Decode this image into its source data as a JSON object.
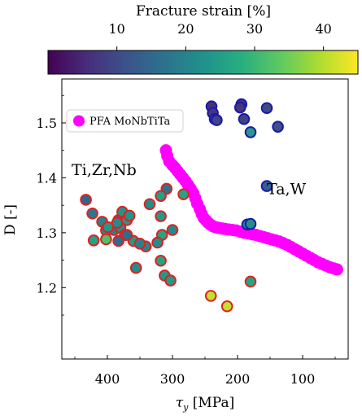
{
  "colorbar": {
    "label": "Fracture strain [%]",
    "vmin": 0,
    "vmax": 45,
    "ticks": [
      10,
      20,
      30,
      40
    ],
    "tick_labels": [
      "10",
      "20",
      "30",
      "40"
    ],
    "colormap": "viridis",
    "position": "top"
  },
  "chart_data": {
    "type": "scatter",
    "xlabel": "τ_y [MPa]",
    "xlabel_symbol": "τ",
    "xlabel_sub": "y",
    "xlabel_unit": " [MPa]",
    "ylabel": "D [-]",
    "xlim": [
      470,
      30
    ],
    "ylim": [
      1.07,
      1.58
    ],
    "x_inverted": true,
    "xticks": [
      400,
      300,
      200,
      100
    ],
    "xtick_labels": [
      "400",
      "300",
      "200",
      "100"
    ],
    "yticks": [
      1.2,
      1.3,
      1.4,
      1.5
    ],
    "ytick_labels": [
      "1.2",
      "1.3",
      "1.4",
      "1.5"
    ],
    "grid": false,
    "legend": {
      "position": "top-left",
      "entries": [
        {
          "label": "PFA MoNbTiTa",
          "color": "#ff00ff"
        }
      ]
    },
    "annotations": [
      {
        "text": "Ti,Zr,Nb",
        "color": "#e02020",
        "x": 455,
        "y": 1.405
      },
      {
        "text": "Ta,W",
        "color": "#1a1aa8",
        "x": 155,
        "y": 1.37
      }
    ],
    "series": [
      {
        "name": "PFA MoNbTiTa",
        "color": "#ff00ff",
        "x": [
          310,
          308,
          305,
          300,
          296,
          292,
          288,
          284,
          280,
          276,
          272,
          268,
          265,
          262,
          258,
          255,
          252,
          248,
          245,
          242,
          238,
          234,
          230,
          225,
          220,
          214,
          208,
          202,
          196,
          190,
          184,
          180,
          176,
          172,
          166,
          160,
          154,
          148,
          142,
          136,
          130,
          124,
          118,
          112,
          106,
          100,
          94,
          88,
          82,
          76,
          70,
          64,
          58,
          52,
          47
        ],
        "y": [
          1.45,
          1.44,
          1.43,
          1.423,
          1.418,
          1.412,
          1.406,
          1.4,
          1.394,
          1.387,
          1.38,
          1.372,
          1.363,
          1.353,
          1.343,
          1.334,
          1.327,
          1.322,
          1.318,
          1.315,
          1.312,
          1.31,
          1.309,
          1.308,
          1.307,
          1.306,
          1.305,
          1.304,
          1.302,
          1.3,
          1.299,
          1.298,
          1.297,
          1.296,
          1.294,
          1.292,
          1.29,
          1.288,
          1.286,
          1.284,
          1.281,
          1.278,
          1.274,
          1.27,
          1.266,
          1.262,
          1.258,
          1.254,
          1.25,
          1.246,
          1.243,
          1.24,
          1.237,
          1.235,
          1.233
        ]
      },
      {
        "name": "Ti,Zr,Nb",
        "edge_color": "#e02020",
        "x": [
          433,
          423,
          408,
          402,
          390,
          383,
          377,
          383,
          370,
          402,
          380,
          366,
          360,
          373,
          341,
          335,
          309,
          318,
          318,
          300,
          316,
          323,
          356,
          383,
          421,
          399,
          385,
          370,
          350,
          283,
          318,
          312,
          303,
          180,
          216,
          241
        ],
        "y": [
          1.36,
          1.335,
          1.32,
          1.304,
          1.305,
          1.323,
          1.338,
          1.316,
          1.323,
          1.288,
          1.309,
          1.331,
          1.285,
          1.296,
          1.275,
          1.352,
          1.38,
          1.367,
          1.33,
          1.305,
          1.296,
          1.282,
          1.236,
          1.285,
          1.286,
          1.31,
          1.318,
          1.296,
          1.28,
          1.37,
          1.249,
          1.222,
          1.213,
          1.211,
          1.166,
          1.185
        ],
        "strain": [
          15,
          18,
          20,
          22,
          20,
          16,
          23,
          26,
          24,
          32,
          22,
          23,
          24,
          20,
          21,
          22,
          17,
          25,
          24,
          21,
          26,
          22,
          22,
          16,
          26,
          24,
          22,
          16,
          20,
          26,
          26,
          24,
          24,
          26,
          41,
          41
        ]
      },
      {
        "name": "Ta,W",
        "edge_color": "#1a1aa8",
        "x": [
          240,
          238,
          235,
          232,
          194,
          196,
          190,
          155,
          138,
          180,
          185,
          180,
          155
        ],
        "y": [
          1.53,
          1.518,
          1.507,
          1.505,
          1.534,
          1.528,
          1.507,
          1.527,
          1.493,
          1.483,
          1.315,
          1.316,
          1.385
        ],
        "strain": [
          6,
          7,
          8,
          9,
          6,
          7,
          9,
          10,
          11,
          24,
          22,
          22,
          14
        ]
      }
    ]
  }
}
